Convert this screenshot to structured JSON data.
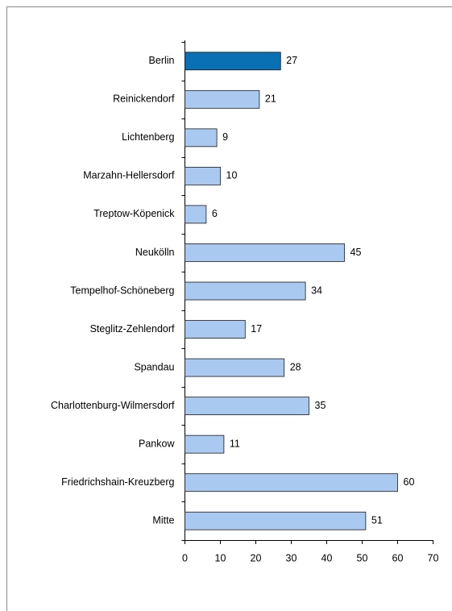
{
  "chart_data": {
    "type": "bar",
    "orientation": "horizontal",
    "categories": [
      "Berlin",
      "Reinickendorf",
      "Lichtenberg",
      "Marzahn-Hellersdorf",
      "Treptow-Köpenick",
      "Neukölln",
      "Tempelhof-Schöneberg",
      "Steglitz-Zehlendorf",
      "Spandau",
      "Charlottenburg-Wilmersdorf",
      "Pankow",
      "Friedrichshain-Kreuzberg",
      "Mitte"
    ],
    "values": [
      27,
      21,
      9,
      10,
      6,
      45,
      34,
      17,
      28,
      35,
      11,
      60,
      51
    ],
    "colors": [
      "#0a70b4",
      "#a9c9f0",
      "#a9c9f0",
      "#a9c9f0",
      "#a9c9f0",
      "#a9c9f0",
      "#a9c9f0",
      "#a9c9f0",
      "#a9c9f0",
      "#a9c9f0",
      "#a9c9f0",
      "#a9c9f0",
      "#a9c9f0"
    ],
    "xlim": [
      0,
      70
    ],
    "xticks": [
      0,
      10,
      20,
      30,
      40,
      50,
      60,
      70
    ],
    "grid": false
  }
}
